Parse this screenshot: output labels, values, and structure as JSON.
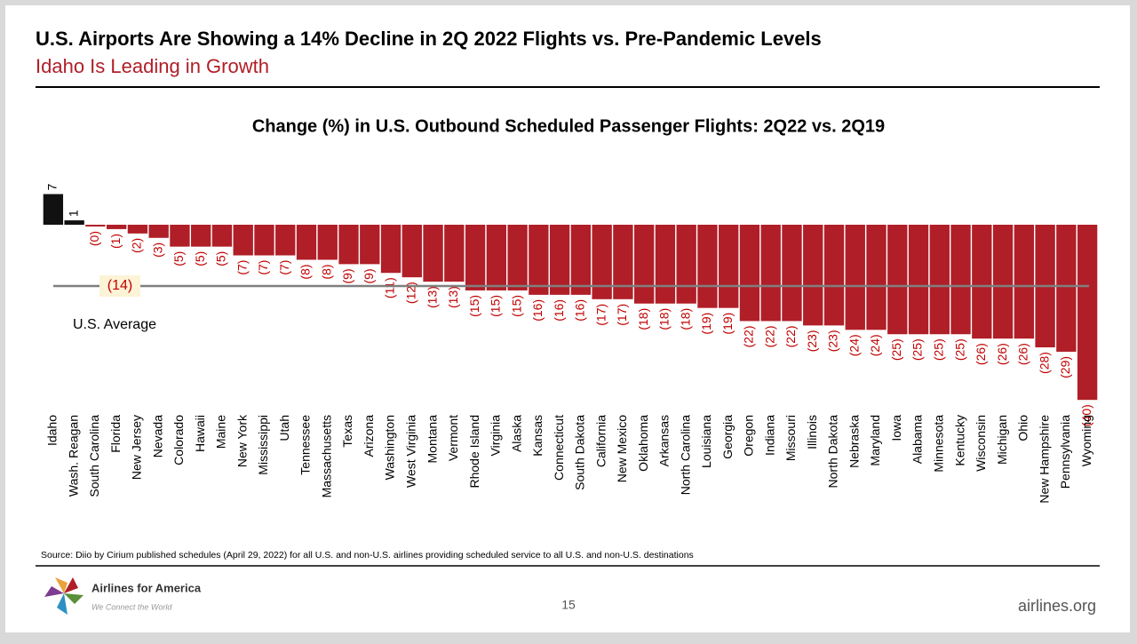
{
  "header": {
    "title": "U.S. Airports Are Showing a 14% Decline in 2Q 2022 Flights vs. Pre-Pandemic Levels",
    "subtitle": "Idaho Is Leading in Growth"
  },
  "chart_data": {
    "type": "bar",
    "title": "Change (%) in U.S. Outbound Scheduled Passenger Flights: 2Q22 vs. 2Q19",
    "categories": [
      "Idaho",
      "Wash. Reagan",
      "South Carolina",
      "Florida",
      "New Jersey",
      "Nevada",
      "Colorado",
      "Hawaii",
      "Maine",
      "New York",
      "Mississippi",
      "Utah",
      "Tennessee",
      "Massachusetts",
      "Texas",
      "Arizona",
      "Washington",
      "West Virginia",
      "Montana",
      "Vermont",
      "Rhode Island",
      "Virginia",
      "Alaska",
      "Kansas",
      "Connecticut",
      "South Dakota",
      "California",
      "New Mexico",
      "Oklahoma",
      "Arkansas",
      "North Carolina",
      "Louisiana",
      "Georgia",
      "Oregon",
      "Indiana",
      "Missouri",
      "Illinois",
      "North Dakota",
      "Nebraska",
      "Maryland",
      "Iowa",
      "Alabama",
      "Minnesota",
      "Kentucky",
      "Wisconsin",
      "Michigan",
      "Ohio",
      "New Hampshire",
      "Pennsylvania",
      "Wyoming"
    ],
    "values": [
      7,
      1,
      -0.4,
      -1,
      -2,
      -3,
      -5,
      -5,
      -5,
      -7,
      -7,
      -7,
      -8,
      -8,
      -9,
      -9,
      -11,
      -12,
      -13,
      -13,
      -15,
      -15,
      -15,
      -16,
      -16,
      -16,
      -17,
      -17,
      -18,
      -18,
      -18,
      -19,
      -19,
      -22,
      -22,
      -22,
      -23,
      -23,
      -24,
      -24,
      -25,
      -25,
      -25,
      -25,
      -26,
      -26,
      -26,
      -28,
      -29,
      -40
    ],
    "value_labels": [
      "7",
      "1",
      "(0)",
      "(1)",
      "(2)",
      "(3)",
      "(5)",
      "(5)",
      "(5)",
      "(7)",
      "(7)",
      "(7)",
      "(8)",
      "(8)",
      "(9)",
      "(9)",
      "(11)",
      "(12)",
      "(13)",
      "(13)",
      "(15)",
      "(15)",
      "(15)",
      "(16)",
      "(16)",
      "(16)",
      "(17)",
      "(17)",
      "(18)",
      "(18)",
      "(18)",
      "(19)",
      "(19)",
      "(22)",
      "(22)",
      "(22)",
      "(23)",
      "(23)",
      "(24)",
      "(24)",
      "(25)",
      "(25)",
      "(25)",
      "(25)",
      "(26)",
      "(26)",
      "(26)",
      "(28)",
      "(29)",
      "(40)"
    ],
    "colors": {
      "positive": "#111111",
      "negative": "#b01e27"
    },
    "reference_line": {
      "value": -14,
      "value_label": "(14)",
      "label": "U.S. Average"
    }
  },
  "source": "Source: Diio by Cirium published schedules (April 29, 2022) for all U.S. and non-U.S. airlines providing scheduled service to all U.S. and non-U.S. destinations",
  "footer": {
    "logo_name": "Airlines for America",
    "tagline": "We Connect the World",
    "page": "15",
    "website": "airlines.org"
  }
}
